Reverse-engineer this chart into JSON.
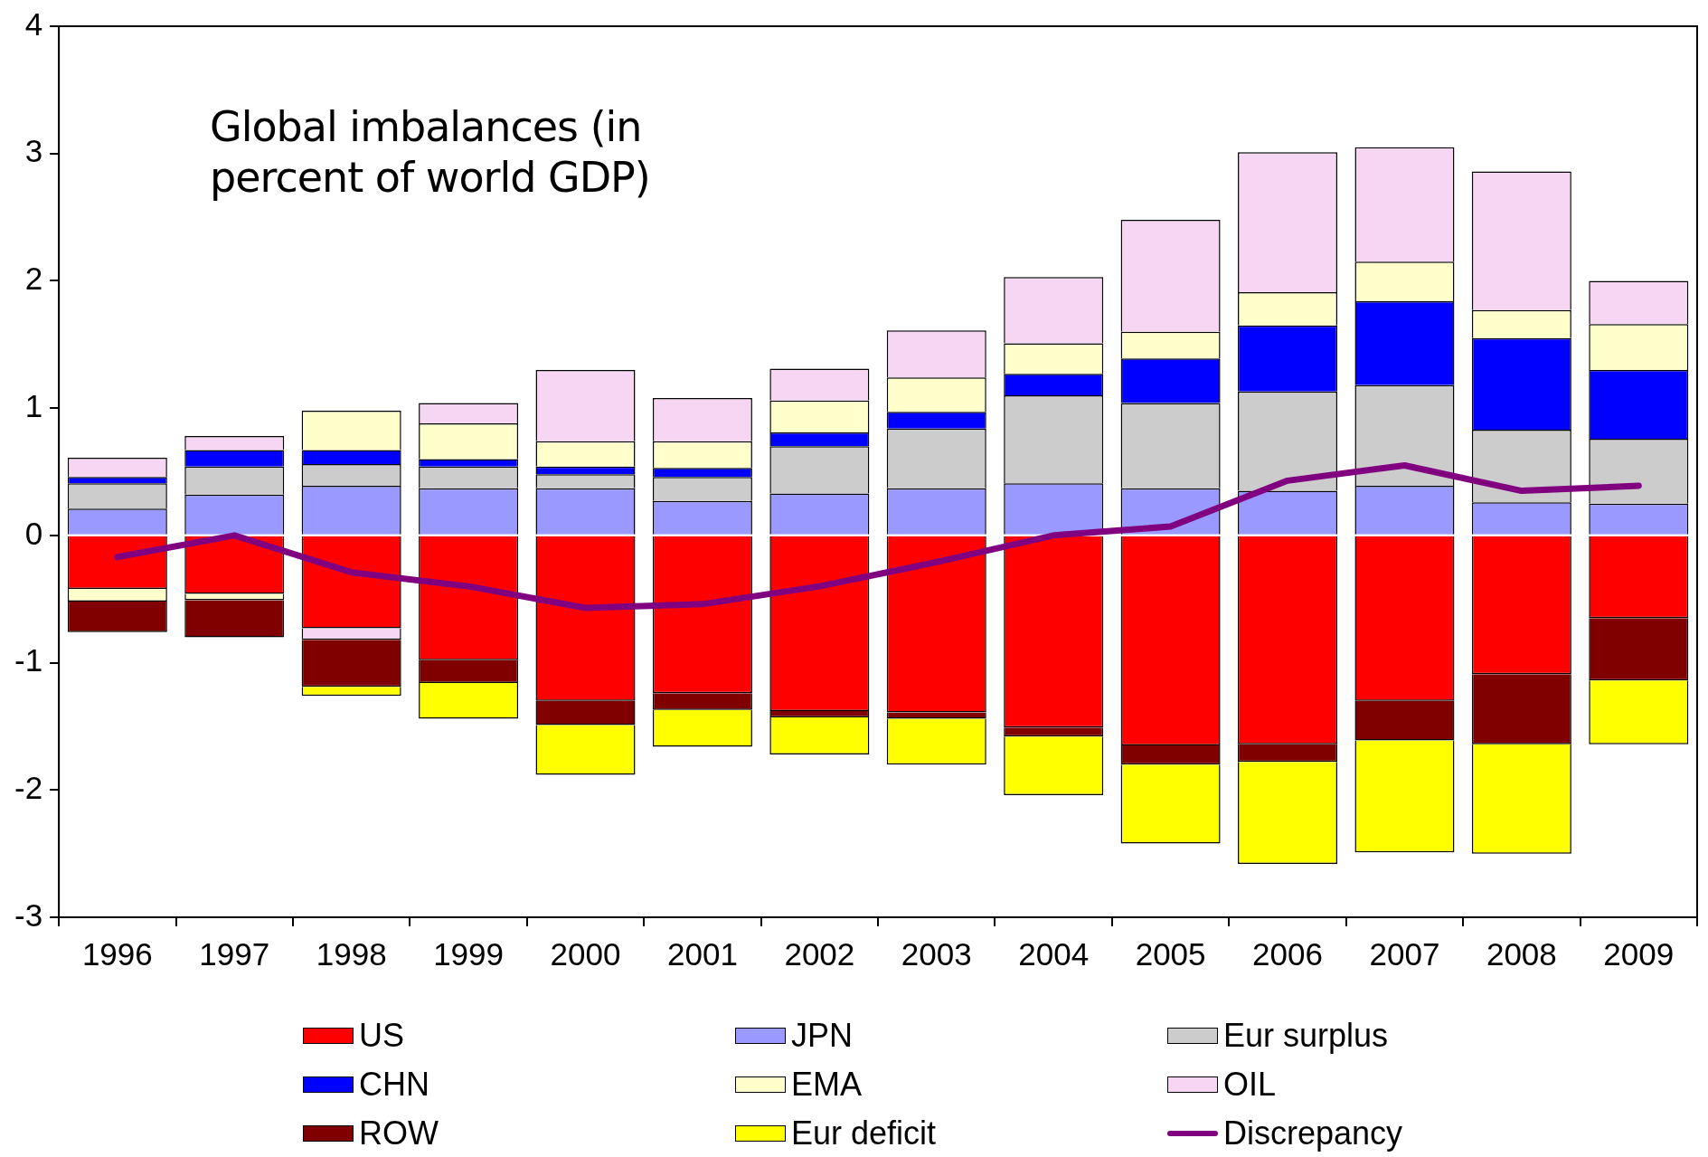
{
  "chart_data": {
    "type": "bar",
    "title": "Global imbalances (in percent of world GDP)",
    "categories": [
      "1996",
      "1997",
      "1998",
      "1999",
      "2000",
      "2001",
      "2002",
      "2003",
      "2004",
      "2005",
      "2006",
      "2007",
      "2008",
      "2009"
    ],
    "stacked": true,
    "series": [
      {
        "name": "US",
        "color": "#ff0000",
        "values": [
          -0.42,
          -0.46,
          -0.73,
          -0.98,
          -1.3,
          -1.24,
          -1.38,
          -1.39,
          -1.51,
          -1.65,
          -1.64,
          -1.3,
          -1.09,
          -0.65
        ]
      },
      {
        "name": "JPN",
        "color": "#9999ff",
        "values": [
          0.21,
          0.32,
          0.39,
          0.37,
          0.37,
          0.27,
          0.33,
          0.37,
          0.41,
          0.37,
          0.35,
          0.39,
          0.26,
          0.25
        ]
      },
      {
        "name": "Eur surplus",
        "color": "#cccccc",
        "values": [
          0.2,
          0.22,
          0.17,
          0.17,
          0.11,
          0.19,
          0.37,
          0.47,
          0.69,
          0.67,
          0.78,
          0.79,
          0.57,
          0.51
        ]
      },
      {
        "name": "CHN",
        "color": "#0000ff",
        "values": [
          0.05,
          0.13,
          0.11,
          0.06,
          0.06,
          0.07,
          0.11,
          0.13,
          0.17,
          0.35,
          0.52,
          0.66,
          0.72,
          0.54
        ]
      },
      {
        "name": "EMA",
        "color": "#ffffcc",
        "values": [
          -0.1,
          -0.05,
          0.31,
          0.28,
          0.2,
          0.21,
          0.25,
          0.27,
          0.24,
          0.21,
          0.26,
          0.31,
          0.22,
          0.36
        ]
      },
      {
        "name": "OIL",
        "color": "#f6d6f2",
        "values": [
          0.15,
          0.11,
          -0.09,
          0.16,
          0.56,
          0.34,
          0.25,
          0.37,
          0.52,
          0.88,
          1.1,
          0.9,
          1.09,
          0.34
        ]
      },
      {
        "name": "ROW",
        "color": "#800000",
        "values": [
          -0.24,
          -0.29,
          -0.37,
          -0.18,
          -0.19,
          -0.13,
          -0.05,
          -0.05,
          -0.07,
          -0.15,
          -0.14,
          -0.31,
          -0.55,
          -0.49
        ]
      },
      {
        "name": "Eur deficit",
        "color": "#ffff00",
        "values": [
          null,
          null,
          -0.07,
          -0.28,
          -0.39,
          -0.29,
          -0.29,
          -0.36,
          -0.46,
          -0.62,
          -0.8,
          -0.88,
          -0.86,
          -0.5
        ]
      },
      {
        "name": "Discrepancy",
        "type": "line",
        "color": "#800080",
        "values": [
          -0.17,
          0.0,
          -0.29,
          -0.4,
          -0.57,
          -0.54,
          -0.4,
          -0.21,
          0.0,
          0.07,
          0.43,
          0.55,
          0.35,
          0.39
        ]
      }
    ],
    "ylim": [
      -3,
      4
    ],
    "yticks": [
      -3,
      -2,
      -1,
      0,
      1,
      2,
      3,
      4
    ],
    "grid": false,
    "legend": "bottom",
    "marker": "none",
    "line_style": "solid"
  }
}
